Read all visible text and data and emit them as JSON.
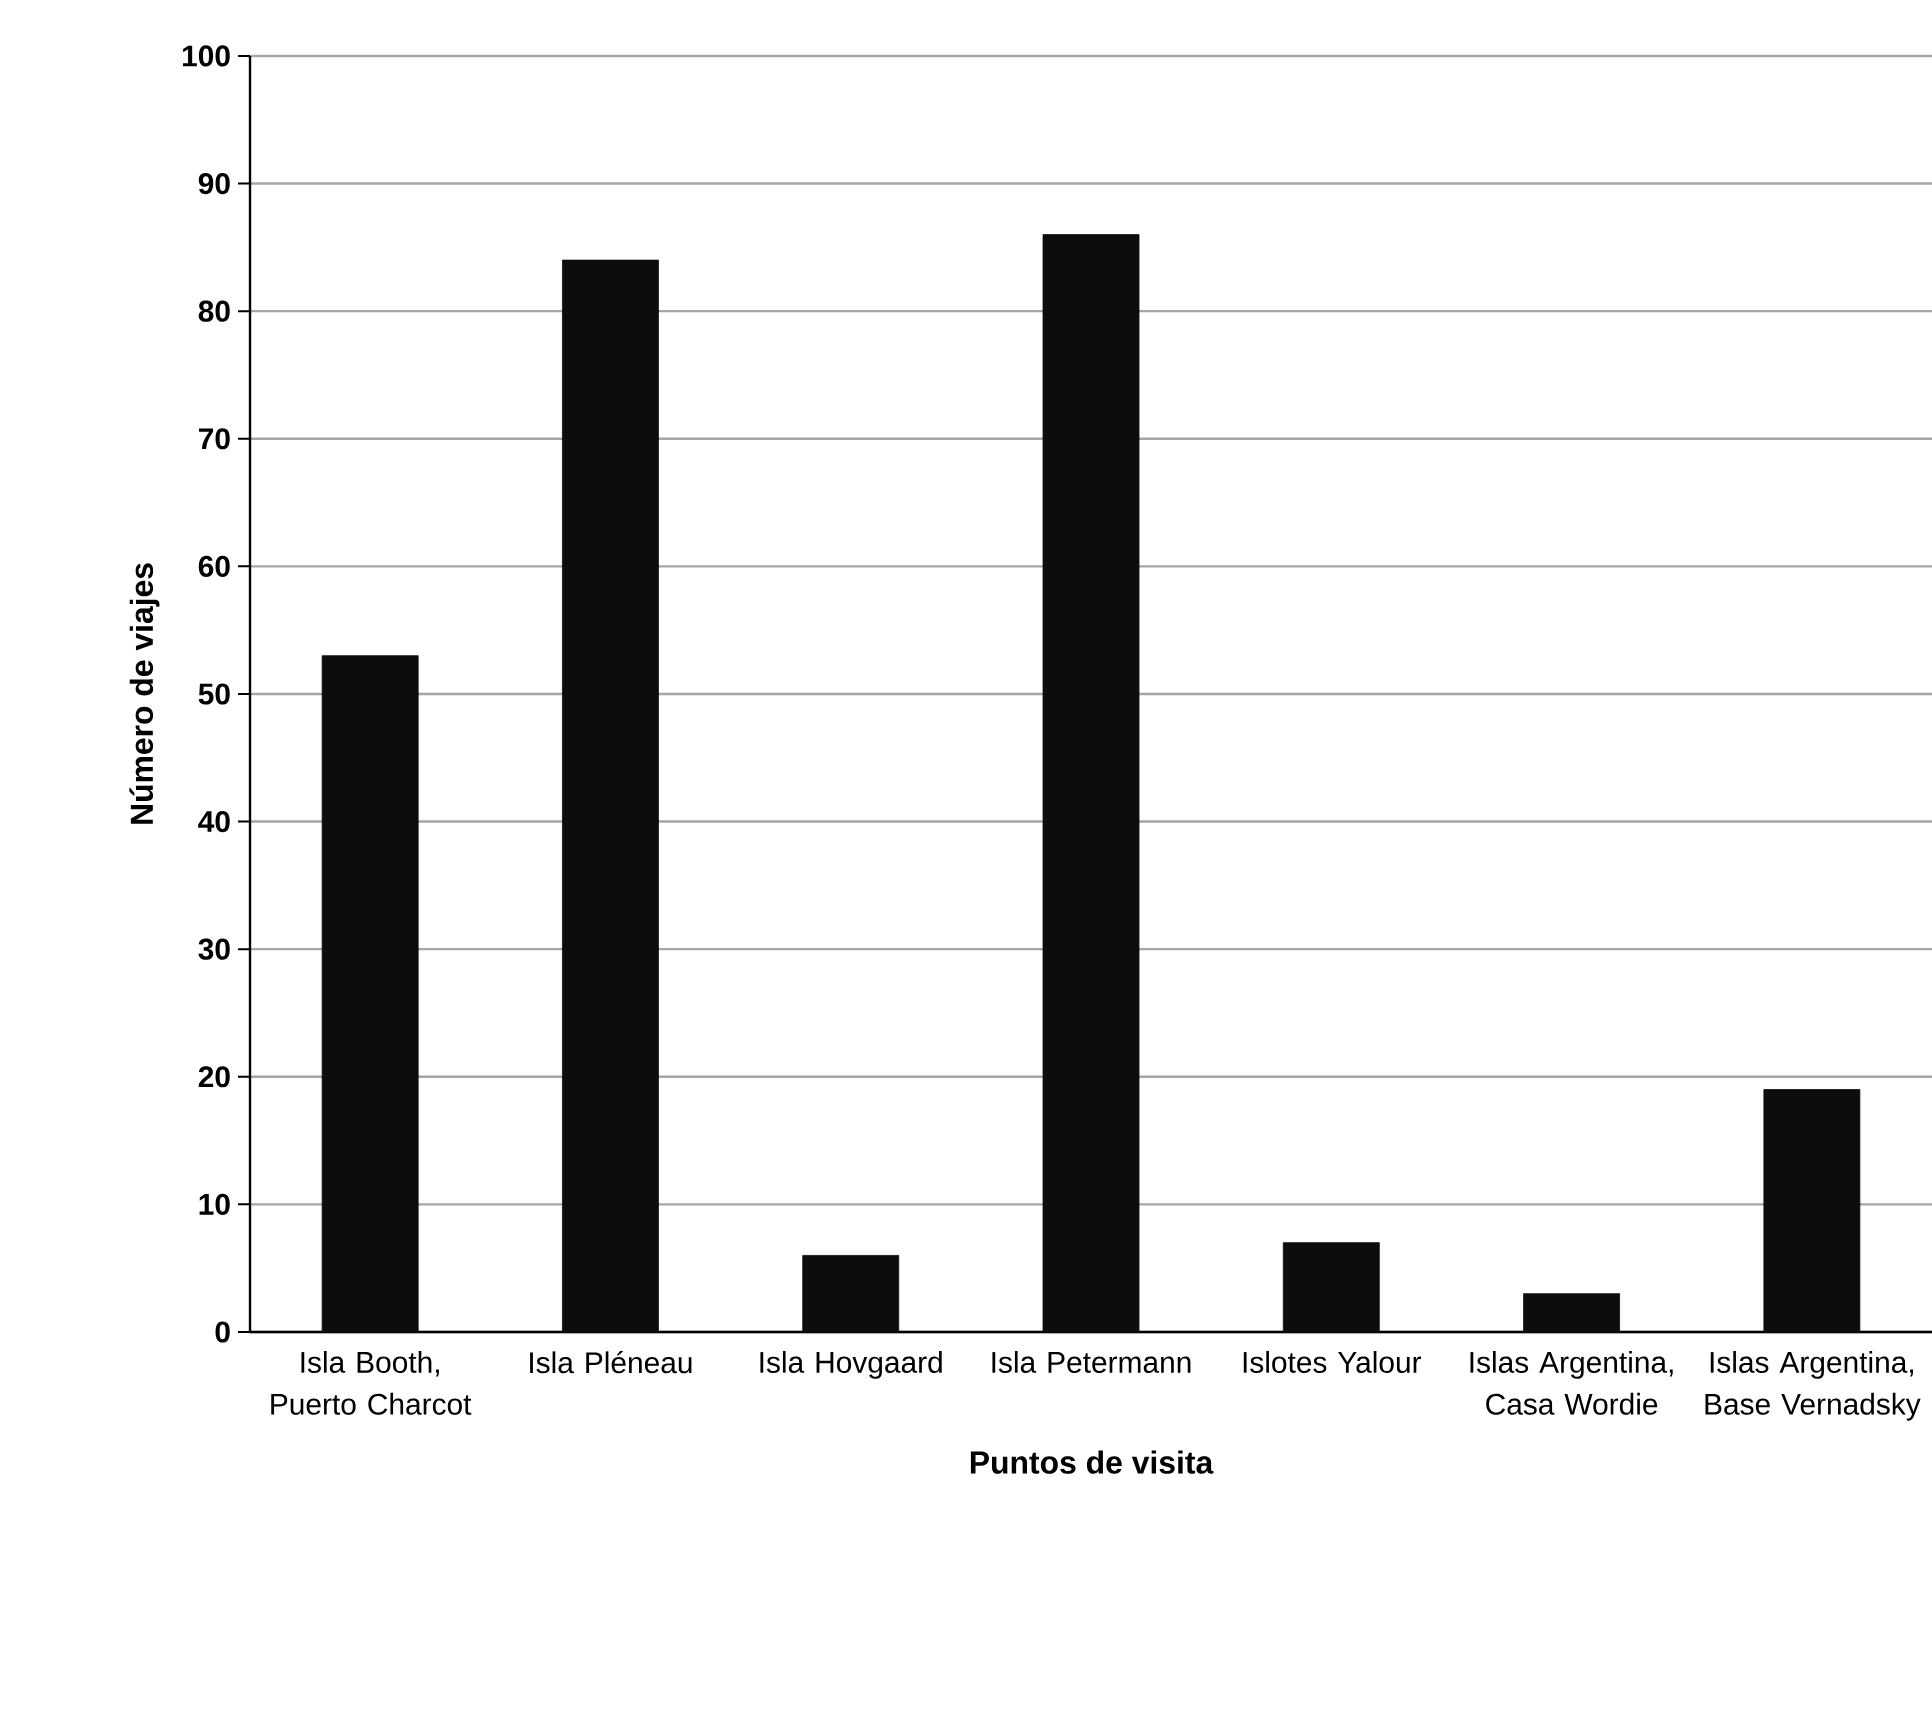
{
  "chart_data": {
    "type": "bar",
    "xlabel": "Puntos de visita",
    "ylabel": "Número de viajes",
    "categories": [
      "Isla Booth, Puerto Charcot",
      "Isla Pléneau",
      "Isla Hovgaard",
      "Isla Petermann",
      "Islotes Yalour",
      "Islas Argentina, Casa Wordie",
      "Islas Argentina, Base Vernadsky"
    ],
    "values": [
      53,
      84,
      6,
      86,
      7,
      3,
      19
    ],
    "color": "#0d0d0d",
    "ylim": [
      0,
      100
    ],
    "yticks": [
      0,
      10,
      20,
      30,
      40,
      50,
      60,
      70,
      80,
      90,
      100
    ],
    "grid": "y"
  }
}
